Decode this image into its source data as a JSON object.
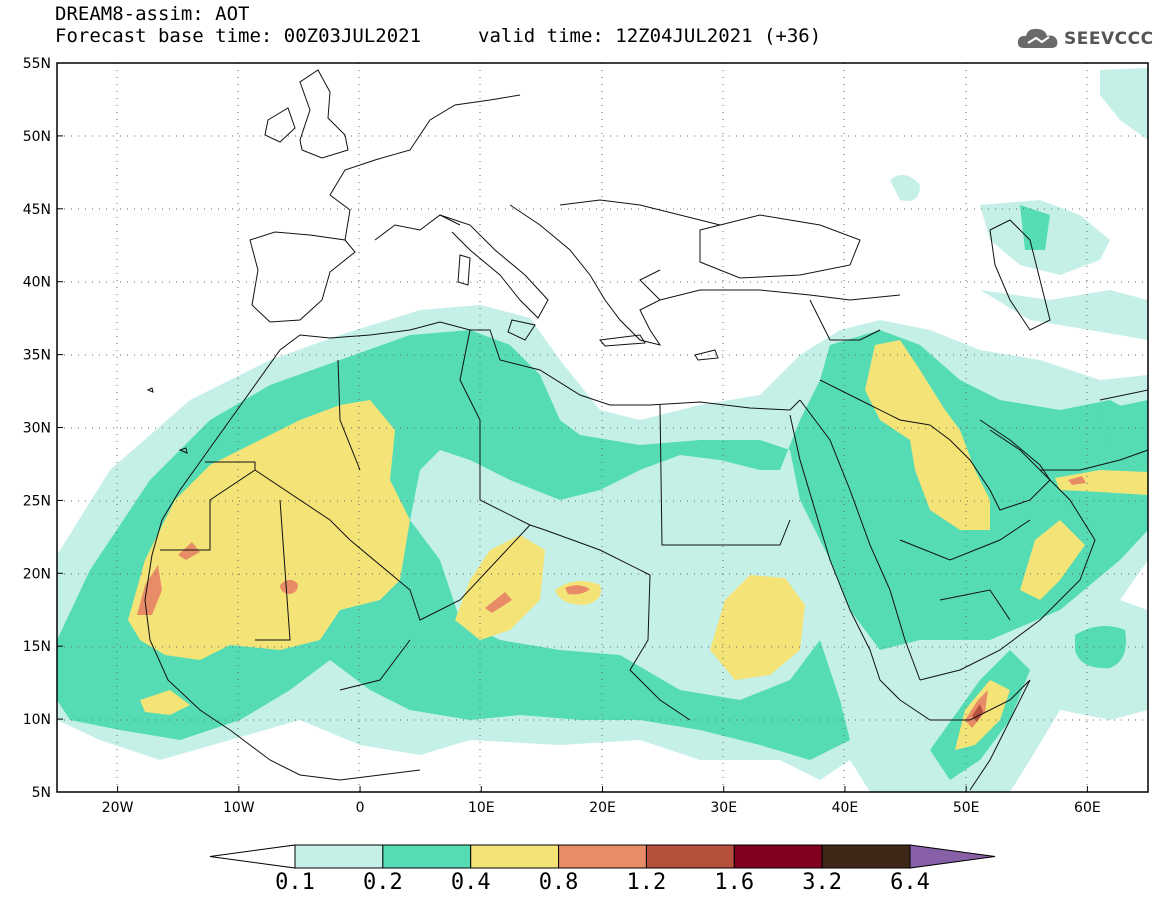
{
  "header": {
    "model_title": "DREAM8-assim: AOT",
    "base_time": "Forecast base time: 00Z03JUL2021",
    "valid_time": "valid time: 12Z04JUL2021 (+36)",
    "logo_text": "SEEVCCC",
    "logo_icon": "cloud-icon"
  },
  "map": {
    "lat_labels": [
      "55N",
      "50N",
      "45N",
      "40N",
      "35N",
      "30N",
      "25N",
      "20N",
      "15N",
      "10N",
      "5N"
    ],
    "lon_labels": [
      "20W",
      "10W",
      "0",
      "10E",
      "20E",
      "30E",
      "40E",
      "50E",
      "60E"
    ],
    "lat_values": [
      55,
      50,
      45,
      40,
      35,
      30,
      25,
      20,
      15,
      10,
      5
    ],
    "lon_values": [
      -20,
      -10,
      0,
      10,
      20,
      30,
      40,
      50,
      60
    ],
    "extent": {
      "lon_min": -25,
      "lon_max": 65,
      "lat_min": 5,
      "lat_max": 55
    },
    "grid": "dotted"
  },
  "colorbar": {
    "levels": [
      "0.1",
      "0.2",
      "0.4",
      "0.8",
      "1.2",
      "1.6",
      "3.2",
      "6.4"
    ],
    "colors": [
      "#ffffff",
      "#c4f0e8",
      "#55dcb4",
      "#f4e478",
      "#e88c68",
      "#b4503c",
      "#800020",
      "#402818",
      "#8860a8"
    ]
  }
}
